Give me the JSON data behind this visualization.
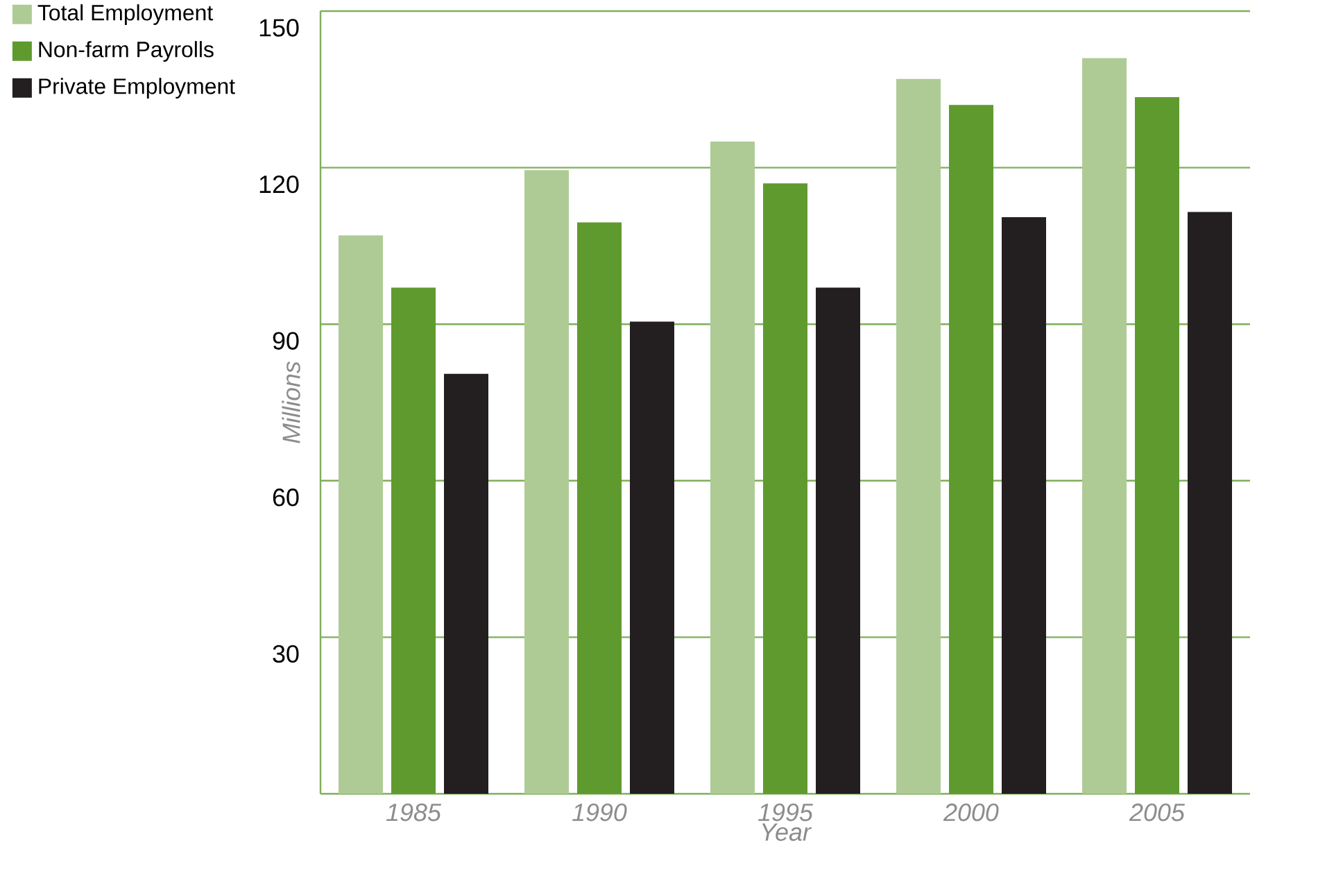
{
  "chart_data": {
    "type": "bar",
    "xlabel": "Year",
    "ylabel": "Millions",
    "categories": [
      "1985",
      "1990",
      "1995",
      "2000",
      "2005"
    ],
    "series": [
      {
        "name": "Total Employment",
        "color": "#aecb96",
        "values": [
          107,
          119.5,
          125,
          137,
          141
        ]
      },
      {
        "name": "Non-farm Payrolls",
        "color": "#5f9a2f",
        "values": [
          97,
          109.5,
          117,
          132,
          133.5
        ]
      },
      {
        "name": "Private Employment",
        "color": "#231f20",
        "values": [
          80.5,
          90.5,
          97,
          110.5,
          111.5
        ]
      }
    ],
    "ylim": [
      0,
      150
    ],
    "yticks": [
      30,
      60,
      90,
      120,
      150
    ],
    "grid": "y",
    "legend": "top left"
  }
}
